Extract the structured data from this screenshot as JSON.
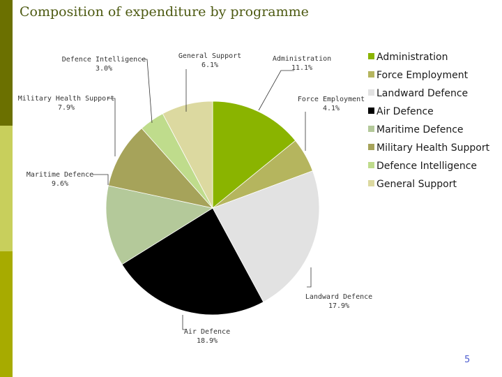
{
  "slide": {
    "title": "Composition of expenditure by programme",
    "page_number": "5"
  },
  "colors": {
    "sidebar": [
      "#6b7000",
      "#c8cf5c",
      "#a7ab00"
    ],
    "title": "#4d5a12",
    "page_number": "#4d5ccf"
  },
  "chart_data": {
    "type": "pie",
    "title": "",
    "legend_position": "right",
    "slices": [
      {
        "name": "Administration",
        "value": 11.1,
        "label": "Administration\n11.1%",
        "color": "#8ab400"
      },
      {
        "name": "Force Employment",
        "value": 4.1,
        "label": "Force Employment\n4.1%",
        "color": "#b5b55e"
      },
      {
        "name": "Landward Defence",
        "value": 17.9,
        "label": "Landward Defence\n17.9%",
        "color": "#e2e2e2"
      },
      {
        "name": "Air Defence",
        "value": 18.9,
        "label": "Air Defence\n18.9%",
        "color": "#000000"
      },
      {
        "name": "Maritime Defence",
        "value": 9.6,
        "label": "Maritime Defence\n9.6%",
        "color": "#b4c99a"
      },
      {
        "name": "Military Health Support",
        "value": 7.9,
        "label": "Military Health Support\n7.9%",
        "color": "#a6a35a"
      },
      {
        "name": "Defence Intelligence",
        "value": 3.0,
        "label": "Defence Intelligence\n3.0%",
        "color": "#bfdc8c"
      },
      {
        "name": "General Support",
        "value": 6.1,
        "label": "General Support\n6.1%",
        "color": "#dcd9a0"
      }
    ]
  }
}
